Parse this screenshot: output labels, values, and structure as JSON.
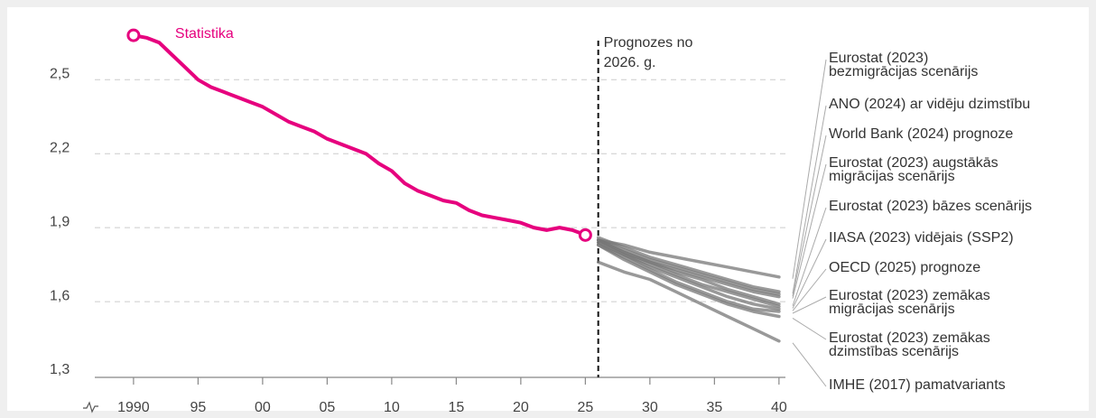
{
  "chart_data": {
    "type": "line",
    "ylim": [
      1.3,
      2.75
    ],
    "yticks": [
      {
        "value": 1.3,
        "label": "1,3"
      },
      {
        "value": 1.6,
        "label": "1,6"
      },
      {
        "value": 1.9,
        "label": "1,9"
      },
      {
        "value": 2.2,
        "label": "2,2"
      },
      {
        "value": 2.5,
        "label": "2,5"
      }
    ],
    "xlim": [
      1987,
      2040.5
    ],
    "xticks": [
      1990,
      {
        "value": 1995,
        "label": "95"
      },
      {
        "value": 2000,
        "label": "00"
      },
      {
        "value": 2005,
        "label": "05"
      },
      {
        "value": 2010,
        "label": "10"
      },
      {
        "value": 2015,
        "label": "15"
      },
      {
        "value": 2020,
        "label": "20"
      },
      {
        "value": 2025,
        "label": "25"
      },
      {
        "value": 2030,
        "label": "30"
      },
      {
        "value": 2035,
        "label": "35"
      },
      {
        "value": 2040,
        "label": "40"
      }
    ],
    "grid": true,
    "annotations": [
      {
        "text": "Prognozes no\n2026. g.",
        "x": 2026
      }
    ],
    "series": [
      {
        "name": "Statistika",
        "color": "#e6007e",
        "x": [
          1990,
          1991,
          1992,
          1993,
          1994,
          1995,
          1996,
          1997,
          1998,
          1999,
          2000,
          2001,
          2002,
          2003,
          2004,
          2005,
          2006,
          2007,
          2008,
          2009,
          2010,
          2011,
          2012,
          2013,
          2014,
          2015,
          2016,
          2017,
          2018,
          2019,
          2020,
          2021,
          2022,
          2023,
          2024,
          2025
        ],
        "values": [
          2.68,
          2.67,
          2.65,
          2.6,
          2.55,
          2.5,
          2.47,
          2.45,
          2.43,
          2.41,
          2.39,
          2.36,
          2.33,
          2.31,
          2.29,
          2.26,
          2.24,
          2.22,
          2.2,
          2.16,
          2.13,
          2.08,
          2.05,
          2.03,
          2.01,
          2.0,
          1.97,
          1.95,
          1.94,
          1.93,
          1.92,
          1.9,
          1.89,
          1.9,
          1.89,
          1.87
        ]
      },
      {
        "name": "Eurostat (2023)\nbezmigrācijas scenārijs",
        "color": "#777777",
        "x": [
          2026,
          2028,
          2030,
          2032,
          2034,
          2036,
          2038,
          2040
        ],
        "values": [
          1.85,
          1.83,
          1.8,
          1.78,
          1.76,
          1.74,
          1.72,
          1.7
        ]
      },
      {
        "name": "ANO (2024) ar vidēju dzimstību",
        "color": "#777777",
        "x": [
          2026,
          2028,
          2030,
          2032,
          2034,
          2036,
          2038,
          2040
        ],
        "values": [
          1.86,
          1.82,
          1.78,
          1.75,
          1.72,
          1.69,
          1.66,
          1.64
        ]
      },
      {
        "name": "World Bank (2024) prognoze",
        "color": "#777777",
        "x": [
          2026,
          2028,
          2030,
          2032,
          2034,
          2036,
          2038,
          2040
        ],
        "values": [
          1.85,
          1.81,
          1.77,
          1.74,
          1.71,
          1.68,
          1.65,
          1.63
        ]
      },
      {
        "name": "Eurostat (2023) augstākās\nmigrācijas scenārijs",
        "color": "#777777",
        "x": [
          2026,
          2028,
          2030,
          2032,
          2034,
          2036,
          2038,
          2040
        ],
        "values": [
          1.85,
          1.8,
          1.76,
          1.73,
          1.7,
          1.67,
          1.64,
          1.62
        ]
      },
      {
        "name": "Eurostat (2023) bāzes scenārijs",
        "color": "#777777",
        "x": [
          2026,
          2028,
          2030,
          2032,
          2034,
          2036,
          2038,
          2040
        ],
        "values": [
          1.85,
          1.8,
          1.76,
          1.72,
          1.69,
          1.65,
          1.62,
          1.59
        ]
      },
      {
        "name": "IIASA (2023) vidējais (SSP2)",
        "color": "#777777",
        "x": [
          2026,
          2028,
          2030,
          2032,
          2034,
          2036,
          2038,
          2040
        ],
        "values": [
          1.84,
          1.79,
          1.75,
          1.71,
          1.67,
          1.64,
          1.61,
          1.58
        ]
      },
      {
        "name": "OECD (2025) prognoze",
        "color": "#777777",
        "x": [
          2026,
          2028,
          2030,
          2032,
          2034,
          2036,
          2038,
          2040
        ],
        "values": [
          1.84,
          1.79,
          1.74,
          1.7,
          1.66,
          1.62,
          1.59,
          1.57
        ]
      },
      {
        "name": "Eurostat (2023) zemākas\nmigrācijas scenārijs",
        "color": "#777777",
        "x": [
          2026,
          2028,
          2030,
          2032,
          2034,
          2036,
          2038,
          2040
        ],
        "values": [
          1.83,
          1.78,
          1.73,
          1.68,
          1.64,
          1.6,
          1.57,
          1.56
        ]
      },
      {
        "name": "Eurostat (2023) zemākas\ndzimstības scenārijs",
        "color": "#777777",
        "x": [
          2026,
          2028,
          2030,
          2032,
          2034,
          2036,
          2038,
          2040
        ],
        "values": [
          1.83,
          1.77,
          1.72,
          1.67,
          1.63,
          1.59,
          1.56,
          1.54
        ]
      },
      {
        "name": "IMHE (2017) pamatvariants",
        "color": "#777777",
        "x": [
          2026,
          2028,
          2030,
          2032,
          2034,
          2036,
          2038,
          2040
        ],
        "values": [
          1.76,
          1.72,
          1.69,
          1.64,
          1.59,
          1.54,
          1.49,
          1.44
        ]
      }
    ]
  }
}
